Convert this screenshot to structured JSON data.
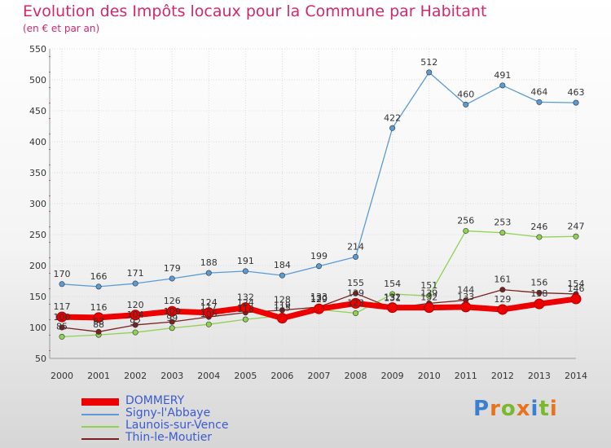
{
  "header": {
    "title": "Evolution des Impôts locaux pour la Commune par Habitant",
    "subtitle": "(en € et par an)"
  },
  "brand": {
    "letters": [
      "P",
      "r",
      "o",
      "x",
      "i",
      "t",
      "i"
    ],
    "colors": [
      "#3b7fd1",
      "#e8731c",
      "#7ab82e",
      "#e8731c",
      "#3b7fd1",
      "#7ab82e",
      "#e8731c"
    ]
  },
  "chart_data": {
    "type": "line",
    "x": [
      "2000",
      "2001",
      "2002",
      "2003",
      "2004",
      "2005",
      "2006",
      "2007",
      "2008",
      "2009",
      "2010",
      "2011",
      "2012",
      "2013",
      "2014"
    ],
    "ylim": [
      50,
      550
    ],
    "yticks": [
      50,
      100,
      150,
      200,
      250,
      300,
      350,
      400,
      450,
      500,
      550
    ],
    "grid": true,
    "legend_position": "bottom-left",
    "series": [
      {
        "name": "DOMMERY",
        "color": "#ee0000",
        "values": [
          117,
          116,
          120,
          126,
          124,
          132,
          115,
          130,
          139,
          132,
          132,
          133,
          129,
          138,
          146
        ],
        "labels": [
          "117",
          "116",
          "120",
          "126",
          "124",
          "132",
          "115",
          "130",
          "139",
          "132",
          "132",
          "133",
          "129",
          "138",
          "146"
        ]
      },
      {
        "name": "Signy-l'Abbaye",
        "color": "#5b9bd5",
        "values": [
          170,
          166,
          171,
          179,
          188,
          191,
          184,
          199,
          214,
          422,
          512,
          460,
          491,
          464,
          463
        ],
        "labels": [
          "170",
          "166",
          "171",
          "179",
          "188",
          "191",
          "184",
          "199",
          "214",
          "422",
          "512",
          "460",
          "491",
          "464",
          "463"
        ]
      },
      {
        "name": "Launois-sur-Vence",
        "color": "#8fd152",
        "values": [
          85,
          88,
          92,
          99,
          105,
          113,
          119,
          129,
          123,
          154,
          151,
          256,
          253,
          246,
          247
        ],
        "labels": [
          "85",
          "88",
          "92",
          "99",
          "105",
          "113",
          "119",
          "129",
          "123",
          "154",
          "151",
          "256",
          "253",
          "246",
          "247"
        ]
      },
      {
        "name": "Thin-le-Moutier",
        "color": "#7a2121",
        "values": [
          100,
          93,
          104,
          109,
          117,
          124,
          128,
          133,
          155,
          131,
          139,
          144,
          161,
          156,
          154
        ],
        "labels": [
          "100",
          "93",
          "104",
          "109",
          "117",
          "124",
          "128",
          "133",
          "155",
          "131",
          "139",
          "144",
          "161",
          "156",
          "154"
        ]
      }
    ]
  }
}
